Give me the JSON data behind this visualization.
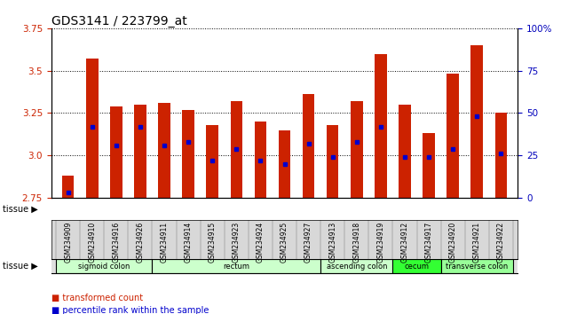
{
  "title": "GDS3141 / 223799_at",
  "samples": [
    "GSM234909",
    "GSM234910",
    "GSM234916",
    "GSM234926",
    "GSM234911",
    "GSM234914",
    "GSM234915",
    "GSM234923",
    "GSM234924",
    "GSM234925",
    "GSM234927",
    "GSM234913",
    "GSM234918",
    "GSM234919",
    "GSM234912",
    "GSM234917",
    "GSM234920",
    "GSM234921",
    "GSM234922"
  ],
  "bar_tops": [
    2.88,
    3.57,
    3.29,
    3.3,
    3.31,
    3.27,
    3.18,
    3.32,
    3.2,
    3.15,
    3.36,
    3.18,
    3.32,
    3.6,
    3.3,
    3.13,
    3.48,
    3.65,
    3.25
  ],
  "bar_base": 2.75,
  "blue_dots": [
    2.78,
    3.17,
    3.06,
    3.17,
    3.06,
    3.08,
    2.97,
    3.04,
    2.97,
    2.95,
    3.07,
    2.99,
    3.08,
    3.17,
    2.99,
    2.99,
    3.04,
    3.23,
    3.01
  ],
  "ylim_left": [
    2.75,
    3.75
  ],
  "ylim_right": [
    0,
    100
  ],
  "yticks_left": [
    2.75,
    3.0,
    3.25,
    3.5,
    3.75
  ],
  "yticks_right": [
    0,
    25,
    50,
    75,
    100
  ],
  "bar_color": "#CC2200",
  "dot_color": "#0000CC",
  "bg_color": "#FFFFFF",
  "plot_bg": "#FFFFFF",
  "tissue_groups": [
    {
      "label": "sigmoid colon",
      "start": 0,
      "end": 3,
      "color": "#CCFFCC"
    },
    {
      "label": "rectum",
      "start": 4,
      "end": 10,
      "color": "#CCFFCC"
    },
    {
      "label": "ascending colon",
      "start": 11,
      "end": 13,
      "color": "#CCFFCC"
    },
    {
      "label": "cecum",
      "start": 14,
      "end": 15,
      "color": "#33FF33"
    },
    {
      "label": "transverse colon",
      "start": 16,
      "end": 18,
      "color": "#99FF99"
    }
  ],
  "tissue_label": "tissue",
  "legend1": "transformed count",
  "legend2": "percentile rank within the sample",
  "left_tick_color": "#CC2200",
  "right_tick_color": "#0000BB",
  "title_fontsize": 10,
  "bar_width": 0.5,
  "dot_marker": "s",
  "dot_size": 3,
  "grid_linestyle": "dotted",
  "grid_linewidth": 0.7
}
